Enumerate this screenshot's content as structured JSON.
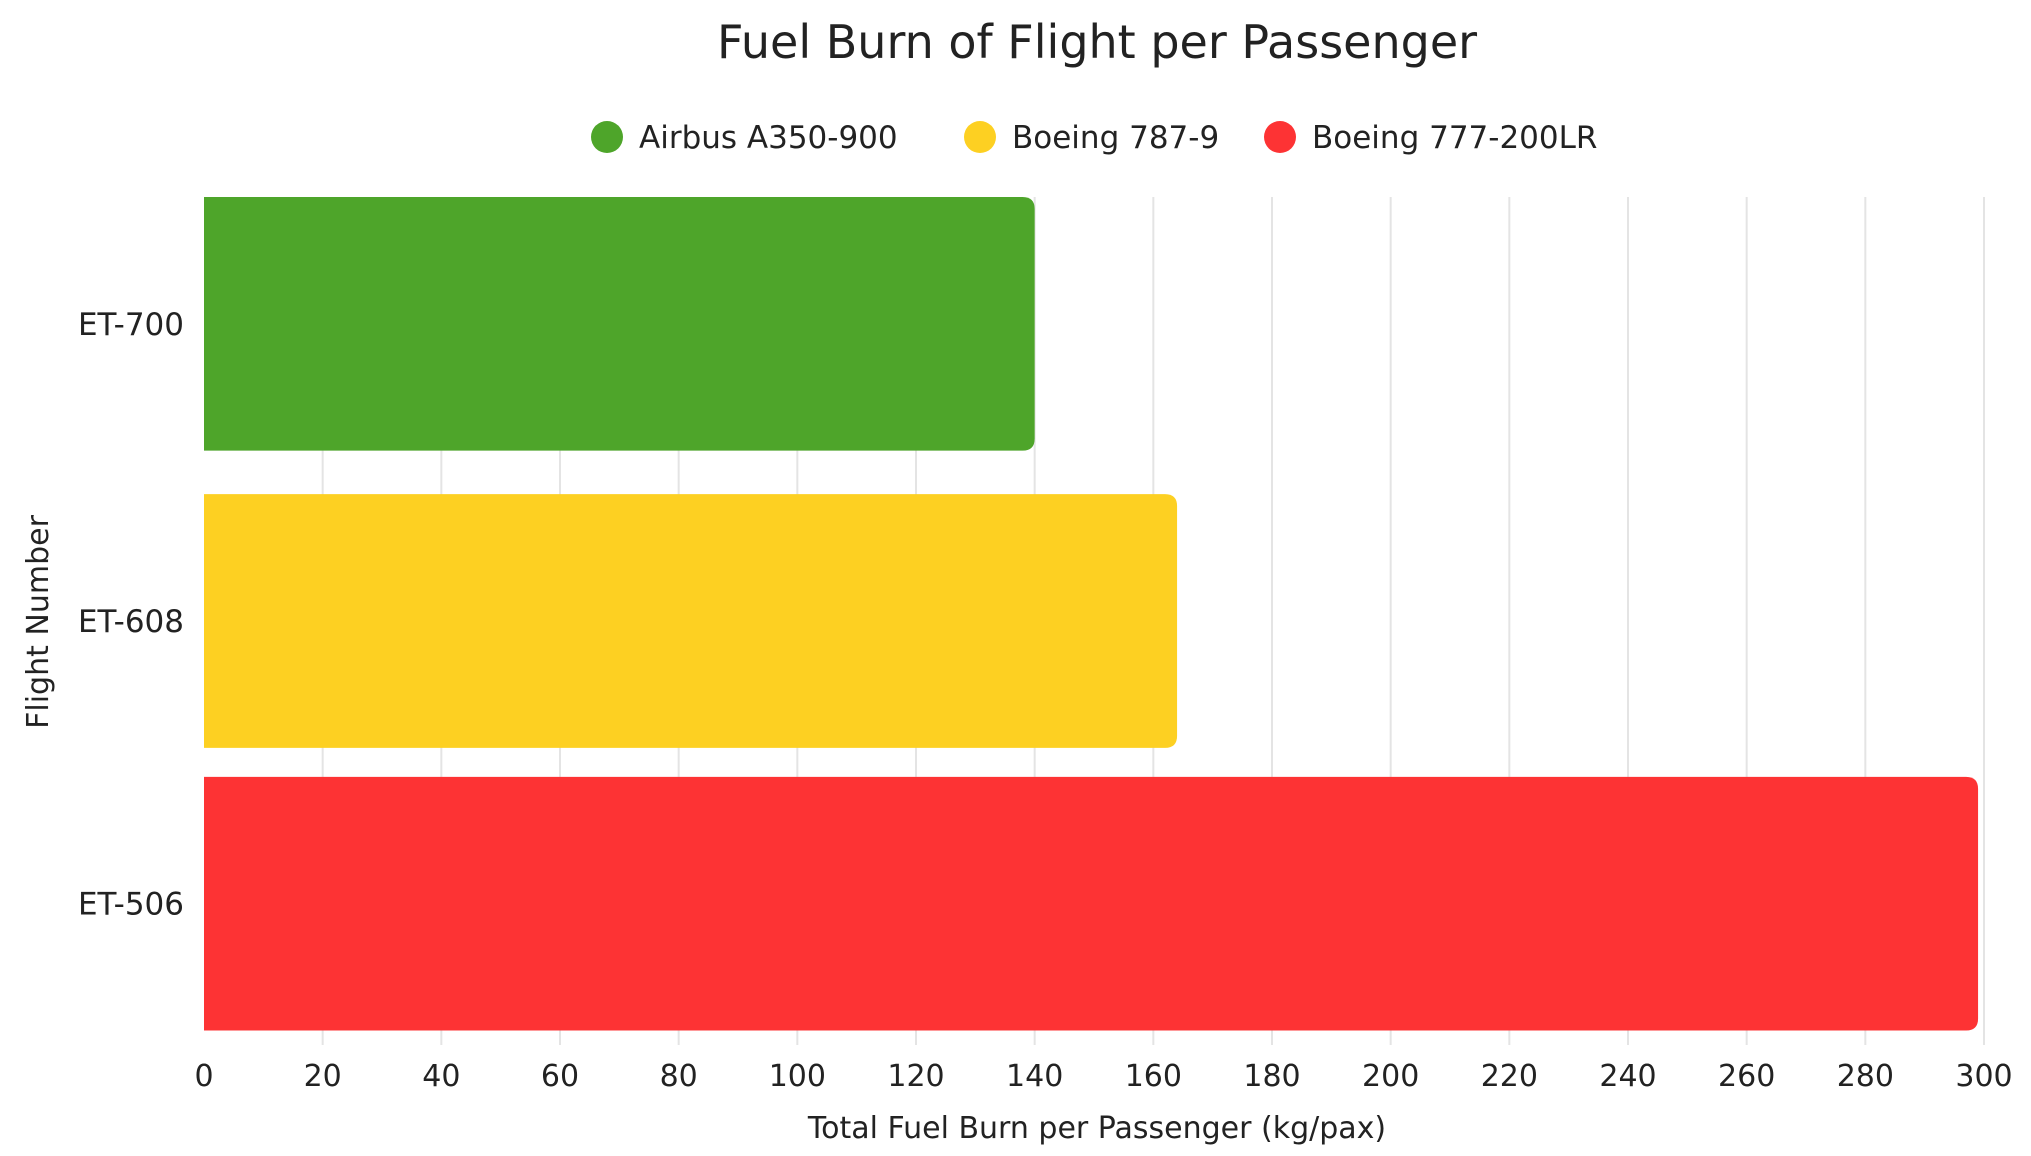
{
  "chart_data": {
    "type": "bar",
    "orientation": "horizontal",
    "title": "Fuel Burn of Flight per Passenger",
    "xlabel": "Total Fuel Burn per Passenger (kg/pax)",
    "ylabel": "Flight Number",
    "xlim": [
      0,
      300
    ],
    "x_ticks": [
      "0",
      "20",
      "40",
      "60",
      "80",
      "100",
      "120",
      "140",
      "160",
      "180",
      "200",
      "220",
      "240",
      "260",
      "280",
      "300"
    ],
    "grid": true,
    "legend_position": "top",
    "categories": [
      "ET-700",
      "ET-608",
      "ET-506"
    ],
    "values": [
      140,
      164,
      299
    ],
    "legend": [
      {
        "name": "Airbus A350-900",
        "color": "#4ea52a"
      },
      {
        "name": "Boeing 787-9",
        "color": "#fdd022"
      },
      {
        "name": "Boeing 777-200LR",
        "color": "#fd3334"
      }
    ],
    "bar_colors": [
      "#4ea52a",
      "#fdd022",
      "#fd3334"
    ]
  }
}
